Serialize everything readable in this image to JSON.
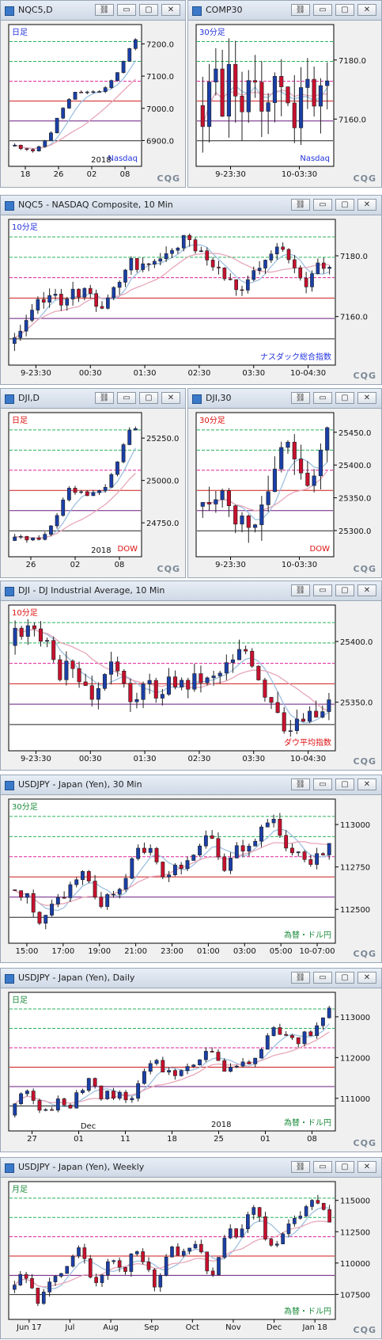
{
  "colors": {
    "up": "#1a3fa8",
    "down": "#c8102e",
    "fast": "#9fc0e0",
    "slow": "#e7a7b8",
    "gridGreen": "#27b35a",
    "pink": "#e0219a",
    "nasdaqLabel": "#2233dd",
    "dowLabel": "#dd1111",
    "fxLabel": "#198a3a"
  },
  "branding": {
    "logo": "CQG"
  },
  "windows": [
    {
      "id": "nqc5d",
      "title": "NQC5,D",
      "tag": "日足",
      "label": "Nasdaq",
      "yTicks": [
        "7200.0",
        "7100.0",
        "7000.0",
        "6900.0"
      ],
      "xTicks": [
        "18",
        "26",
        "02",
        "08"
      ],
      "year": "2018"
    },
    {
      "id": "comp30",
      "title": "COMP30",
      "tag": "30分足",
      "label": "Nasdaq",
      "yTicks": [
        "7180.0",
        "7160.0"
      ],
      "xTicks": [
        "9-23:30",
        "10-03:30"
      ]
    },
    {
      "id": "nqc5",
      "title": "NQC5 - NASDAQ Composite, 10 Min",
      "tag": "10分足",
      "label": "ナスダック総合指数",
      "yTicks": [
        "7180.0",
        "7160.0"
      ],
      "xTicks": [
        "9-23:30",
        "00:30",
        "01:30",
        "02:30",
        "03:30",
        "10-04:30"
      ]
    },
    {
      "id": "djid",
      "title": "DJI,D",
      "tag": "日足",
      "label": "DOW",
      "yTicks": [
        "25250.0",
        "25000.0",
        "24750.0"
      ],
      "xTicks": [
        "26",
        "02",
        "08"
      ],
      "year": "2018"
    },
    {
      "id": "dji30",
      "title": "DJI,30",
      "tag": "30分足",
      "label": "DOW",
      "yTicks": [
        "25450.0",
        "25400.0",
        "25350.0",
        "25300.0"
      ],
      "xTicks": [
        "9-23:30",
        "10-03:30"
      ]
    },
    {
      "id": "dji10",
      "title": "DJI - DJ Industrial Average, 10 Min",
      "tag": "10分足",
      "label": "ダウ平均指数",
      "yTicks": [
        "25400.0",
        "25350.0"
      ],
      "xTicks": [
        "9-23:30",
        "00:30",
        "01:30",
        "02:30",
        "03:30",
        "10-04:30"
      ]
    },
    {
      "id": "usd30",
      "title": "USDJPY - Japan (Yen), 30 Min",
      "tag": "30分足",
      "label": "為替・ドル円",
      "yTicks": [
        "113000",
        "112750",
        "112500"
      ],
      "xTicks": [
        "15:00",
        "17:00",
        "19:00",
        "21:00",
        "23:00",
        "01:00",
        "03:00",
        "05:00",
        "10-07:00"
      ]
    },
    {
      "id": "usdd",
      "title": "USDJPY - Japan (Yen), Daily",
      "tag": "日足",
      "label": "為替・ドル円",
      "yTicks": [
        "113000",
        "112000",
        "111000"
      ],
      "xTicks": [
        "27",
        "01",
        "11",
        "18",
        "25",
        "01",
        "08"
      ],
      "month": "Dec",
      "year": "2018"
    },
    {
      "id": "usdw",
      "title": "USDJPY - Japan (Yen), Weekly",
      "tag": "月足",
      "label": "為替・ドル円",
      "yTicks": [
        "115000",
        "112500",
        "110000",
        "107500"
      ],
      "xTicks": [
        "Jun 17",
        "Jul",
        "Aug",
        "Sep",
        "Oct",
        "Nov",
        "Dec",
        "Jan 18"
      ]
    }
  ]
}
